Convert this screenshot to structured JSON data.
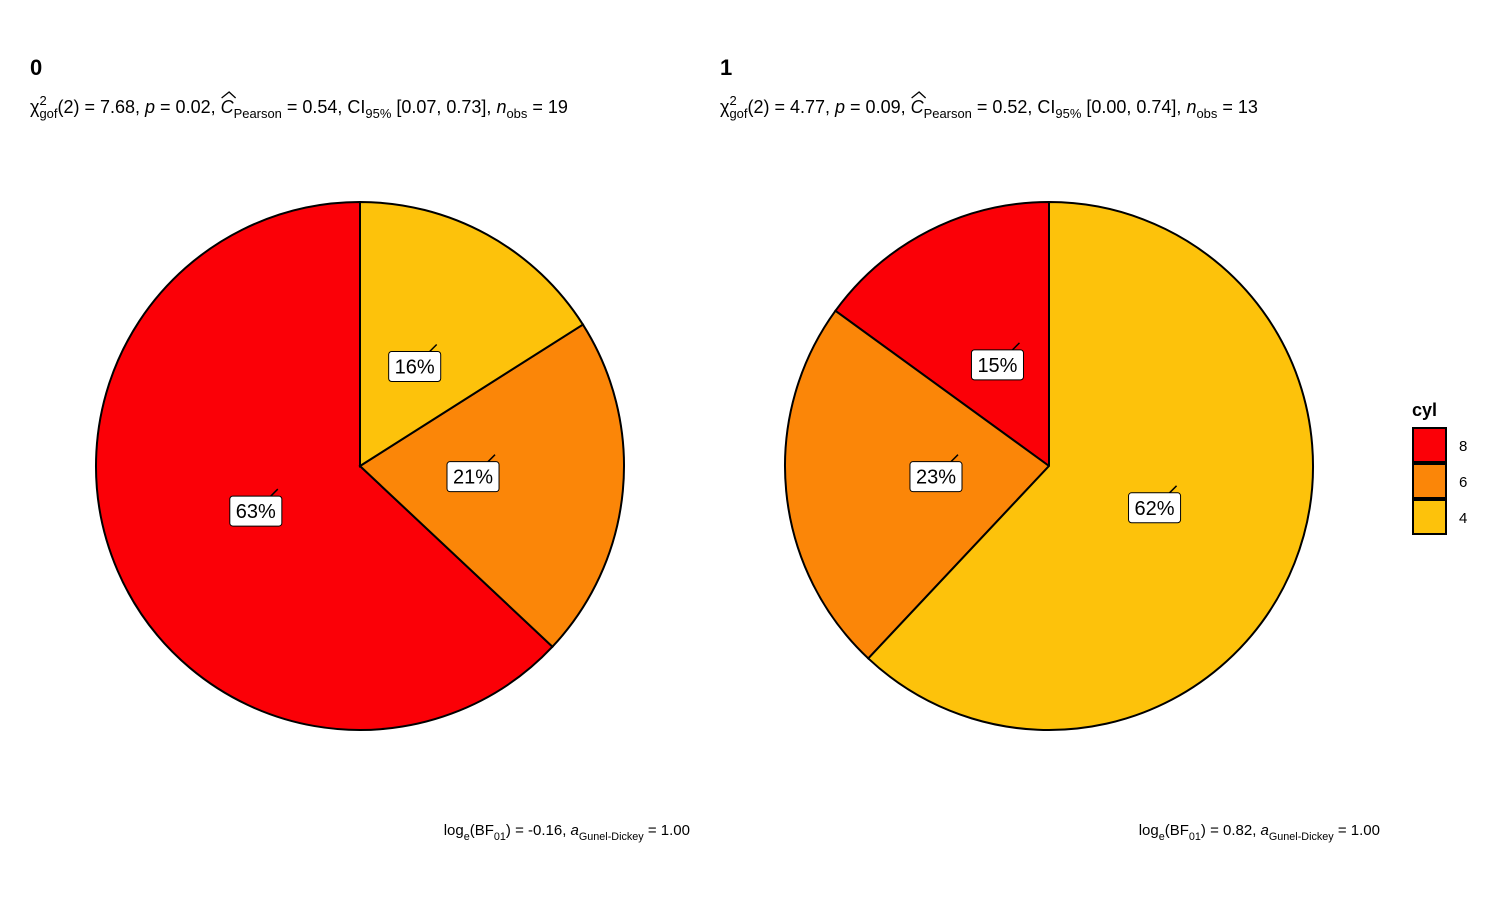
{
  "chart_data": [
    {
      "type": "pie",
      "title": "0",
      "subtitle": [
        {
          "text": "χ"
        },
        {
          "text": "2",
          "shift": "sup"
        },
        {
          "text": "gof",
          "shift": "sub"
        },
        {
          "text": "(2) = 7.68, "
        },
        {
          "text": "p",
          "italic": true
        },
        {
          "text": " = 0.02, "
        },
        {
          "text": "C",
          "italic": true,
          "hat": true
        },
        {
          "text": "Pearson",
          "shift": "sub"
        },
        {
          "text": " = 0.54, CI"
        },
        {
          "text": "95%",
          "shift": "sub"
        },
        {
          "text": " [0.07, 0.73], "
        },
        {
          "text": "n",
          "italic": true
        },
        {
          "text": "obs",
          "shift": "sub"
        },
        {
          "text": " = 19"
        }
      ],
      "caption": [
        {
          "text": "log"
        },
        {
          "text": "e",
          "shift": "sub"
        },
        {
          "text": "(BF"
        },
        {
          "text": "01",
          "shift": "sub"
        },
        {
          "text": ") = -0.16, "
        },
        {
          "text": "a",
          "italic": true
        },
        {
          "text": "Gunel-Dickey",
          "shift": "sub"
        },
        {
          "text": " = 1.00"
        }
      ],
      "categories": [
        "8",
        "6",
        "4"
      ],
      "values": [
        63,
        21,
        16
      ],
      "value_labels": [
        "63%",
        "21%",
        "16%"
      ],
      "colors": [
        "#fb0007",
        "#fb8608",
        "#fdc20b"
      ]
    },
    {
      "type": "pie",
      "title": "1",
      "subtitle": [
        {
          "text": "χ"
        },
        {
          "text": "2",
          "shift": "sup"
        },
        {
          "text": "gof",
          "shift": "sub"
        },
        {
          "text": "(2) = 4.77, "
        },
        {
          "text": "p",
          "italic": true
        },
        {
          "text": " = 0.09, "
        },
        {
          "text": "C",
          "italic": true,
          "hat": true
        },
        {
          "text": "Pearson",
          "shift": "sub"
        },
        {
          "text": " = 0.52, CI"
        },
        {
          "text": "95%",
          "shift": "sub"
        },
        {
          "text": " [0.00, 0.74], "
        },
        {
          "text": "n",
          "italic": true
        },
        {
          "text": "obs",
          "shift": "sub"
        },
        {
          "text": " = 13"
        }
      ],
      "caption": [
        {
          "text": "log"
        },
        {
          "text": "e",
          "shift": "sub"
        },
        {
          "text": "(BF"
        },
        {
          "text": "01",
          "shift": "sub"
        },
        {
          "text": ") = 0.82, "
        },
        {
          "text": "a",
          "italic": true
        },
        {
          "text": "Gunel-Dickey",
          "shift": "sub"
        },
        {
          "text": " = 1.00"
        }
      ],
      "categories": [
        "8",
        "6",
        "4"
      ],
      "values": [
        15,
        23,
        62
      ],
      "value_labels": [
        "15%",
        "23%",
        "62%"
      ],
      "colors": [
        "#fb0007",
        "#fb8608",
        "#fdc20b"
      ],
      "legend": {
        "title": "cyl",
        "position": "right"
      }
    }
  ]
}
